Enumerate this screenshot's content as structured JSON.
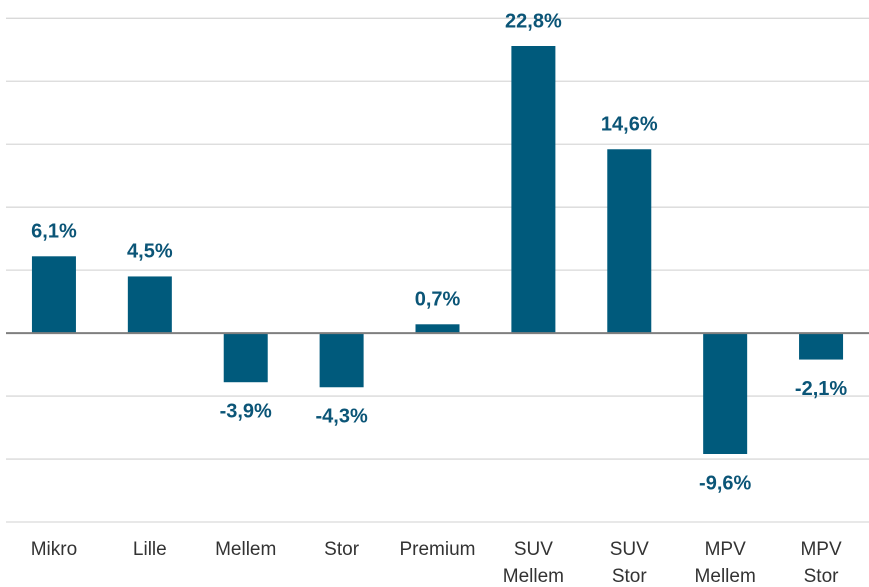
{
  "chart_data": {
    "type": "bar",
    "categories": [
      "Mikro",
      "Lille",
      "Mellem",
      "Stor",
      "Premium",
      "SUV Mellem",
      "SUV Stor",
      "MPV Mellem",
      "MPV Stor"
    ],
    "values": [
      6.1,
      4.5,
      -3.9,
      -4.3,
      0.7,
      22.8,
      14.6,
      -9.6,
      -2.1
    ],
    "value_labels": [
      "6,1%",
      "4,5%",
      "-3,9%",
      "-4,3%",
      "0,7%",
      "22,8%",
      "14,6%",
      "-9,6%",
      "-2,1%"
    ],
    "color": "#005a7c",
    "ylim": [
      -15,
      25
    ],
    "yticks": [
      -15,
      -10,
      -5,
      0,
      5,
      10,
      15,
      20,
      25
    ],
    "grid": true
  }
}
